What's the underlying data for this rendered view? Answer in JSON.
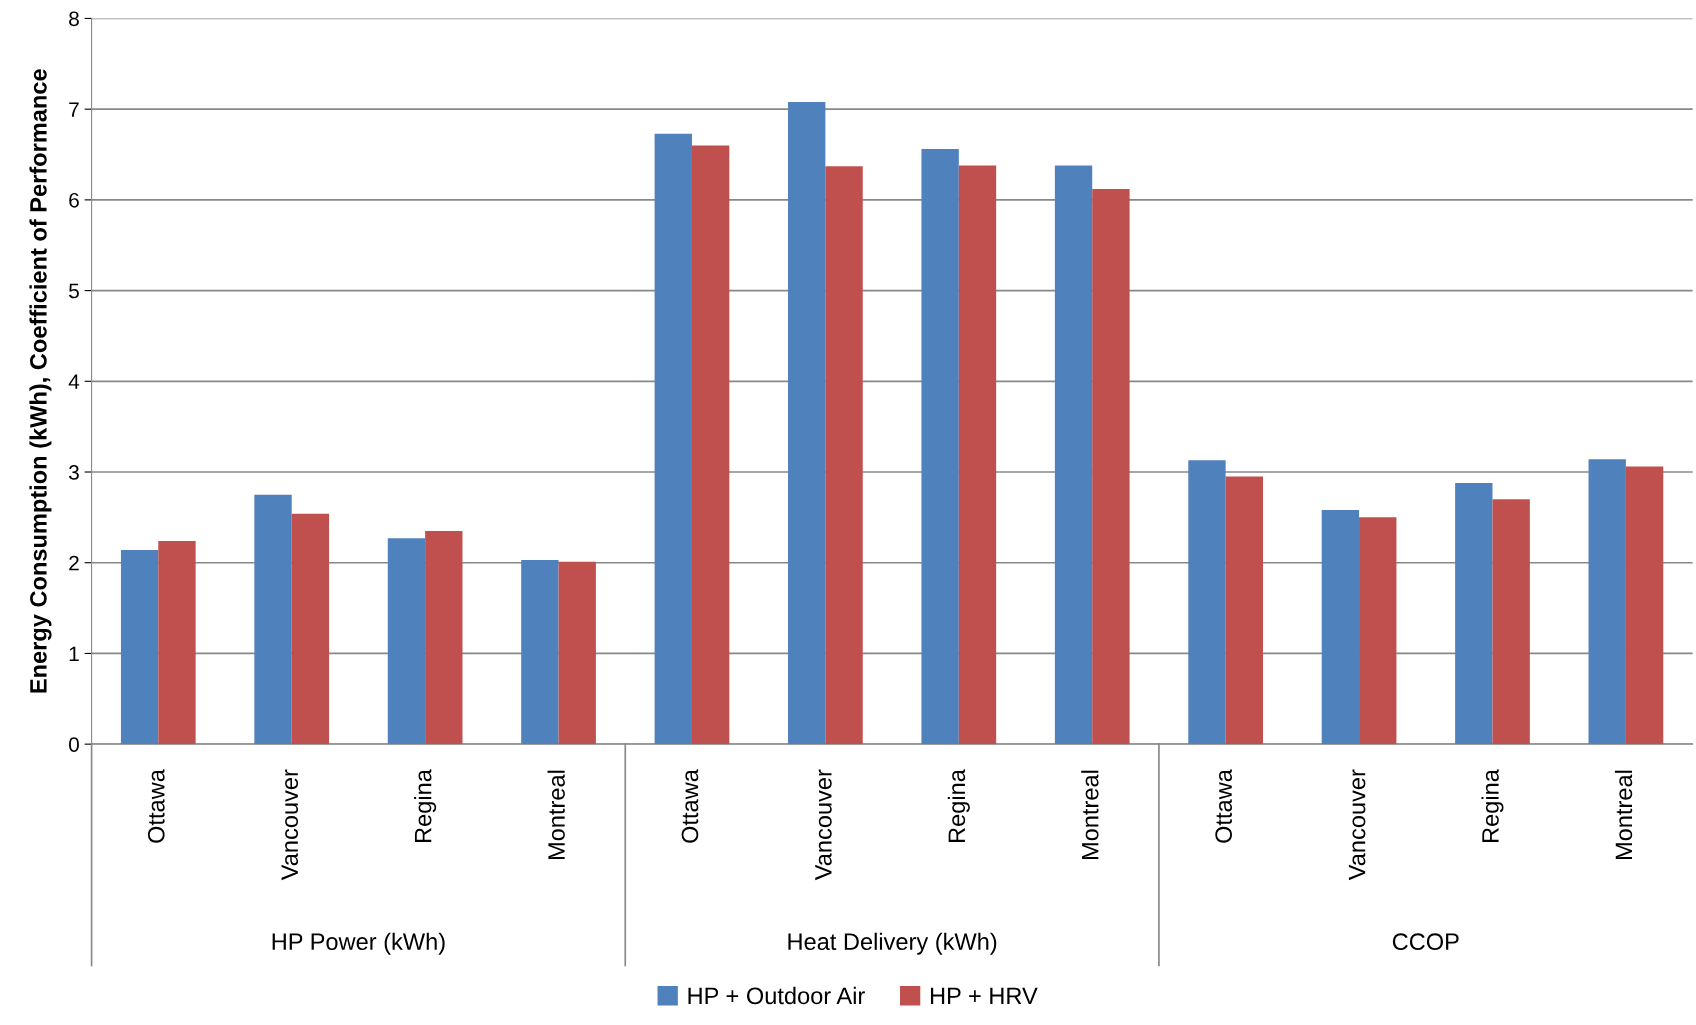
{
  "chart_data": {
    "type": "bar",
    "ylabel": "Energy Consumption (kWh), Coefficient of Performance",
    "categories": [
      "Ottawa",
      "Vancouver",
      "Regina",
      "Montreal",
      "Ottawa",
      "Vancouver",
      "Regina",
      "Montreal",
      "Ottawa",
      "Vancouver",
      "Regina",
      "Montreal"
    ],
    "series": [
      {
        "name": "HP + Outdoor Air",
        "color": "#4f81bd",
        "values": [
          2.14,
          2.75,
          2.27,
          2.03,
          6.73,
          7.08,
          6.56,
          6.38,
          3.13,
          2.58,
          2.88,
          3.14
        ]
      },
      {
        "name": "HP + HRV",
        "color": "#c0504d",
        "values": [
          2.24,
          2.54,
          2.35,
          2.01,
          6.6,
          6.37,
          6.38,
          6.12,
          2.95,
          2.5,
          2.7,
          3.06
        ]
      }
    ],
    "annotations": [
      "HP Power (kWh)",
      "Heat Delivery (kWh)",
      "CCOP"
    ],
    "ylim": [
      0,
      8
    ],
    "yticks": [
      0,
      1,
      2,
      3,
      4,
      5,
      6,
      7,
      8
    ],
    "grid": "y",
    "legend": "bottom"
  }
}
